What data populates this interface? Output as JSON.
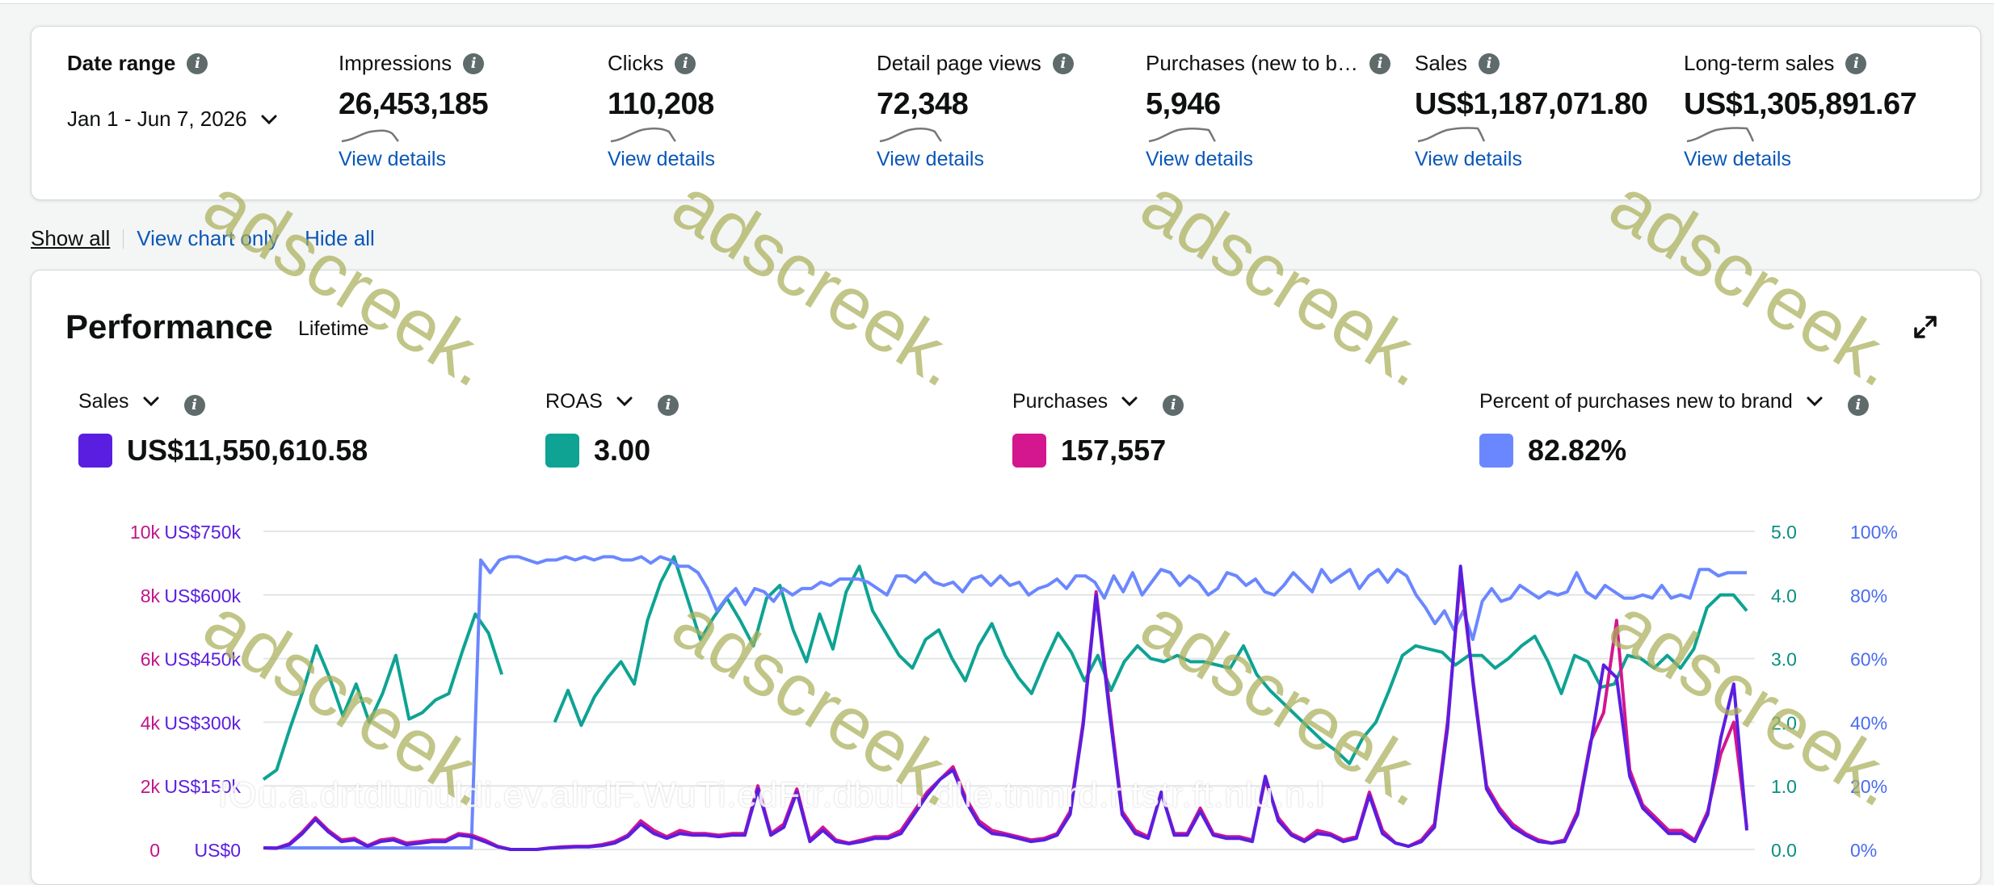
{
  "summary": {
    "date_range_title": "Date range",
    "date_range_value": "Jan 1 - Jun 7, 2026",
    "metrics": [
      {
        "label": "Impressions",
        "value": "26,453,185",
        "link": "View details"
      },
      {
        "label": "Clicks",
        "value": "110,208",
        "link": "View details"
      },
      {
        "label": "Detail page views",
        "value": "72,348",
        "link": "View details"
      },
      {
        "label": "Purchases (new to b…",
        "value": "5,946",
        "link": "View details"
      },
      {
        "label": "Sales",
        "value": "US$1,187,071.80",
        "link": "View details"
      },
      {
        "label": "Long-term sales",
        "value": "US$1,305,891.67",
        "link": "View details"
      }
    ]
  },
  "toggles": {
    "show_all": "Show all",
    "chart_only": "View chart only",
    "hide_all": "Hide all"
  },
  "performance": {
    "title": "Performance",
    "subtitle": "Lifetime",
    "kpis": [
      {
        "label": "Sales",
        "value": "US$11,550,610.58",
        "color": "#5a1ee0"
      },
      {
        "label": "ROAS",
        "value": "3.00",
        "color": "#0ea393"
      },
      {
        "label": "Purchases",
        "value": "157,557",
        "color": "#d4168f"
      },
      {
        "label": "Percent of purchases new to brand",
        "value": "82.82%",
        "color": "#6b87ff"
      }
    ]
  },
  "watermark": "adscreek.",
  "faint_text": "fOu.a.drtdlunuldi.ev.alrdF.WuTi.edFtr.dbuLi.dlle.tnmrd.r.tstr.ft.nlu.n.l",
  "chart_data": {
    "type": "line",
    "axes": {
      "left_purchases_ticks": [
        "0",
        "2k",
        "4k",
        "6k",
        "8k",
        "10k"
      ],
      "left_sales_ticks": [
        "US$0",
        "US$150k",
        "US$300k",
        "US$450k",
        "US$600k",
        "US$750k"
      ],
      "right_roas_ticks": [
        "0.0",
        "1.0",
        "2.0",
        "3.0",
        "4.0",
        "5.0"
      ],
      "right_pct_ticks": [
        "0%",
        "20%",
        "40%",
        "60%",
        "80%",
        "100%"
      ]
    },
    "grid": true,
    "series": [
      {
        "name": "ROAS",
        "color": "#0ea393",
        "values": [
          1.1,
          1.25,
          1.9,
          2.5,
          3.2,
          2.7,
          2.1,
          2.6,
          2.0,
          2.45,
          3.05,
          2.05,
          2.15,
          2.35,
          2.45,
          3.1,
          3.7,
          3.4,
          2.75,
          null,
          null,
          null,
          2.0,
          2.5,
          1.95,
          2.4,
          2.7,
          2.95,
          2.6,
          3.6,
          4.2,
          4.6,
          3.95,
          3.3,
          3.65,
          3.95,
          3.6,
          3.2,
          3.95,
          4.15,
          3.45,
          2.95,
          3.7,
          3.15,
          4.05,
          4.45,
          3.75,
          3.4,
          3.05,
          2.85,
          3.3,
          3.45,
          3.0,
          2.65,
          3.2,
          3.55,
          3.05,
          2.7,
          2.45,
          2.95,
          3.4,
          3.1,
          2.65,
          3.05,
          2.5,
          2.95,
          3.2,
          3.0,
          2.95,
          3.05,
          2.95,
          2.95,
          2.9,
          2.85,
          3.2,
          2.75,
          2.5,
          2.3,
          2.1,
          1.9,
          1.7,
          1.55,
          1.35,
          1.75,
          2.0,
          2.5,
          3.05,
          3.2,
          3.15,
          3.1,
          2.9,
          3.05,
          3.05,
          2.85,
          3.0,
          3.2,
          3.35,
          2.95,
          2.45,
          3.05,
          2.95,
          2.55,
          2.6,
          3.05,
          3.0,
          2.85,
          3.05,
          2.85,
          3.15,
          3.8,
          4.0,
          4.0,
          3.75
        ]
      },
      {
        "name": "Percent of purchases new to brand",
        "color": "#6b87ff",
        "values": [
          0.5,
          0.5,
          0.5,
          0.5,
          0.5,
          0.5,
          0.5,
          0.5,
          0.5,
          0.5,
          0.5,
          0.5,
          0.5,
          0.5,
          0.5,
          0.5,
          0.5,
          0.5,
          0.5,
          0.5,
          0.5,
          0.5,
          0.5,
          91,
          87,
          91,
          92,
          92,
          91,
          90,
          91,
          91,
          92,
          91,
          92,
          91,
          92,
          92,
          91,
          91,
          92,
          90,
          92,
          91,
          89,
          89,
          87,
          82,
          75,
          79,
          82,
          77,
          82,
          81,
          78,
          82,
          80,
          82,
          82,
          84,
          83,
          85,
          85,
          85,
          84,
          82,
          80,
          86,
          86,
          84,
          87,
          84,
          83,
          84,
          81,
          85,
          86,
          83,
          86,
          83,
          84,
          80,
          82,
          83,
          85,
          82,
          86,
          86,
          84,
          79,
          86,
          81,
          87,
          80,
          84,
          88,
          87,
          83,
          86,
          84,
          80,
          82,
          87,
          86,
          83,
          85,
          81,
          80,
          83,
          87,
          84,
          81,
          88,
          84,
          86,
          88,
          82,
          86,
          88,
          84,
          88,
          86,
          80,
          76,
          71,
          75,
          69,
          75,
          66,
          78,
          82,
          78,
          79,
          83,
          81,
          79,
          81,
          80,
          81,
          87,
          81,
          79,
          83,
          81,
          79,
          79,
          80,
          79,
          83,
          79,
          80,
          79,
          88,
          88,
          86,
          87,
          87,
          87
        ]
      },
      {
        "name": "Purchases",
        "color": "#d4168f",
        "values": [
          0.05,
          0.04,
          0.18,
          0.55,
          1.0,
          0.6,
          0.3,
          0.35,
          0.12,
          0.3,
          0.35,
          0.2,
          0.25,
          0.3,
          0.3,
          0.5,
          0.45,
          0.3,
          0.1,
          0.0,
          0.0,
          0.0,
          0.05,
          0.08,
          0.1,
          0.1,
          0.15,
          0.25,
          0.45,
          0.9,
          0.6,
          0.4,
          0.6,
          0.5,
          0.5,
          0.45,
          0.5,
          0.5,
          2.0,
          0.5,
          0.8,
          1.9,
          0.3,
          0.7,
          0.3,
          0.2,
          0.3,
          0.4,
          0.4,
          0.6,
          1.2,
          1.8,
          2.2,
          2.6,
          1.6,
          0.9,
          0.6,
          0.5,
          0.4,
          0.3,
          0.35,
          0.5,
          1.2,
          4.0,
          8.1,
          4.6,
          1.2,
          0.6,
          0.4,
          1.8,
          0.5,
          0.5,
          1.3,
          0.5,
          0.4,
          0.4,
          0.3,
          2.2,
          1.0,
          0.5,
          0.3,
          0.6,
          0.5,
          0.3,
          0.4,
          1.8,
          0.6,
          0.2,
          0.1,
          0.3,
          0.8,
          4.0,
          8.6,
          5.2,
          2.0,
          1.3,
          0.8,
          0.5,
          0.3,
          0.2,
          0.3,
          1.2,
          3.4,
          4.3,
          7.2,
          2.5,
          1.4,
          1.0,
          0.6,
          0.6,
          0.3,
          1.2,
          3.0,
          4.0,
          0.7
        ]
      },
      {
        "name": "Sales",
        "color": "#5a1ee0",
        "values": [
          0.05,
          0.04,
          0.15,
          0.5,
          0.95,
          0.55,
          0.25,
          0.3,
          0.1,
          0.25,
          0.3,
          0.15,
          0.2,
          0.25,
          0.25,
          0.45,
          0.4,
          0.25,
          0.08,
          0.0,
          0.0,
          0.0,
          0.04,
          0.06,
          0.08,
          0.08,
          0.12,
          0.2,
          0.4,
          0.8,
          0.5,
          0.35,
          0.5,
          0.45,
          0.45,
          0.4,
          0.45,
          0.45,
          1.9,
          0.45,
          0.7,
          1.8,
          0.25,
          0.6,
          0.25,
          0.18,
          0.25,
          0.35,
          0.35,
          0.5,
          1.1,
          1.7,
          2.2,
          2.5,
          1.5,
          0.8,
          0.5,
          0.45,
          0.35,
          0.25,
          0.3,
          0.45,
          1.1,
          3.9,
          8.0,
          4.4,
          1.1,
          0.5,
          0.35,
          1.8,
          0.45,
          0.45,
          1.2,
          0.45,
          0.35,
          0.35,
          0.25,
          2.3,
          0.9,
          0.45,
          0.25,
          0.5,
          0.45,
          0.25,
          0.35,
          1.7,
          0.5,
          0.2,
          0.1,
          0.25,
          0.7,
          3.8,
          8.9,
          5.1,
          1.9,
          1.2,
          0.7,
          0.45,
          0.25,
          0.2,
          0.25,
          1.1,
          3.3,
          5.8,
          5.4,
          2.3,
          1.3,
          0.9,
          0.5,
          0.5,
          0.25,
          1.1,
          3.5,
          5.2,
          0.6
        ]
      }
    ]
  }
}
